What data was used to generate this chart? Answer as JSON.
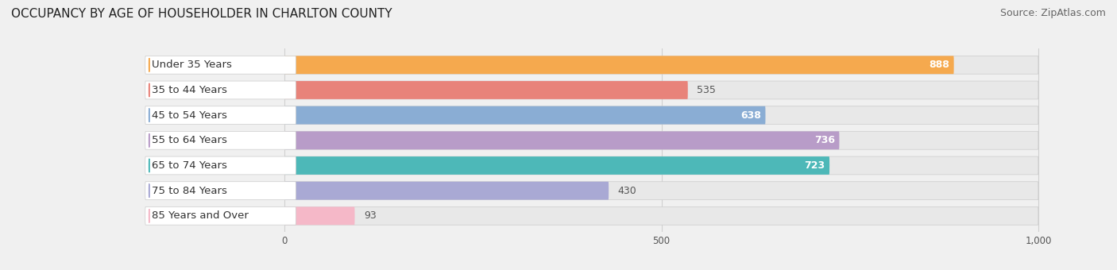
{
  "title": "OCCUPANCY BY AGE OF HOUSEHOLDER IN CHARLTON COUNTY",
  "source": "Source: ZipAtlas.com",
  "categories": [
    "Under 35 Years",
    "35 to 44 Years",
    "45 to 54 Years",
    "55 to 64 Years",
    "65 to 74 Years",
    "75 to 84 Years",
    "85 Years and Over"
  ],
  "values": [
    888,
    535,
    638,
    736,
    723,
    430,
    93
  ],
  "bar_colors": [
    "#f5a94e",
    "#e8837a",
    "#8aadd4",
    "#b89cc8",
    "#4db8b8",
    "#a9a9d4",
    "#f5b8c8"
  ],
  "xlim_data": [
    0,
    1000
  ],
  "xticks": [
    0,
    500,
    1000
  ],
  "xlabel_vals": [
    "0",
    "500",
    "1,000"
  ],
  "title_fontsize": 11,
  "source_fontsize": 9,
  "label_fontsize": 9.5,
  "value_fontsize": 9,
  "background_color": "#f0f0f0",
  "bar_bg_color": "#e8e8e8",
  "label_box_color": "#ffffff",
  "grid_color": "#d0d0d0",
  "value_inside_threshold": 600
}
